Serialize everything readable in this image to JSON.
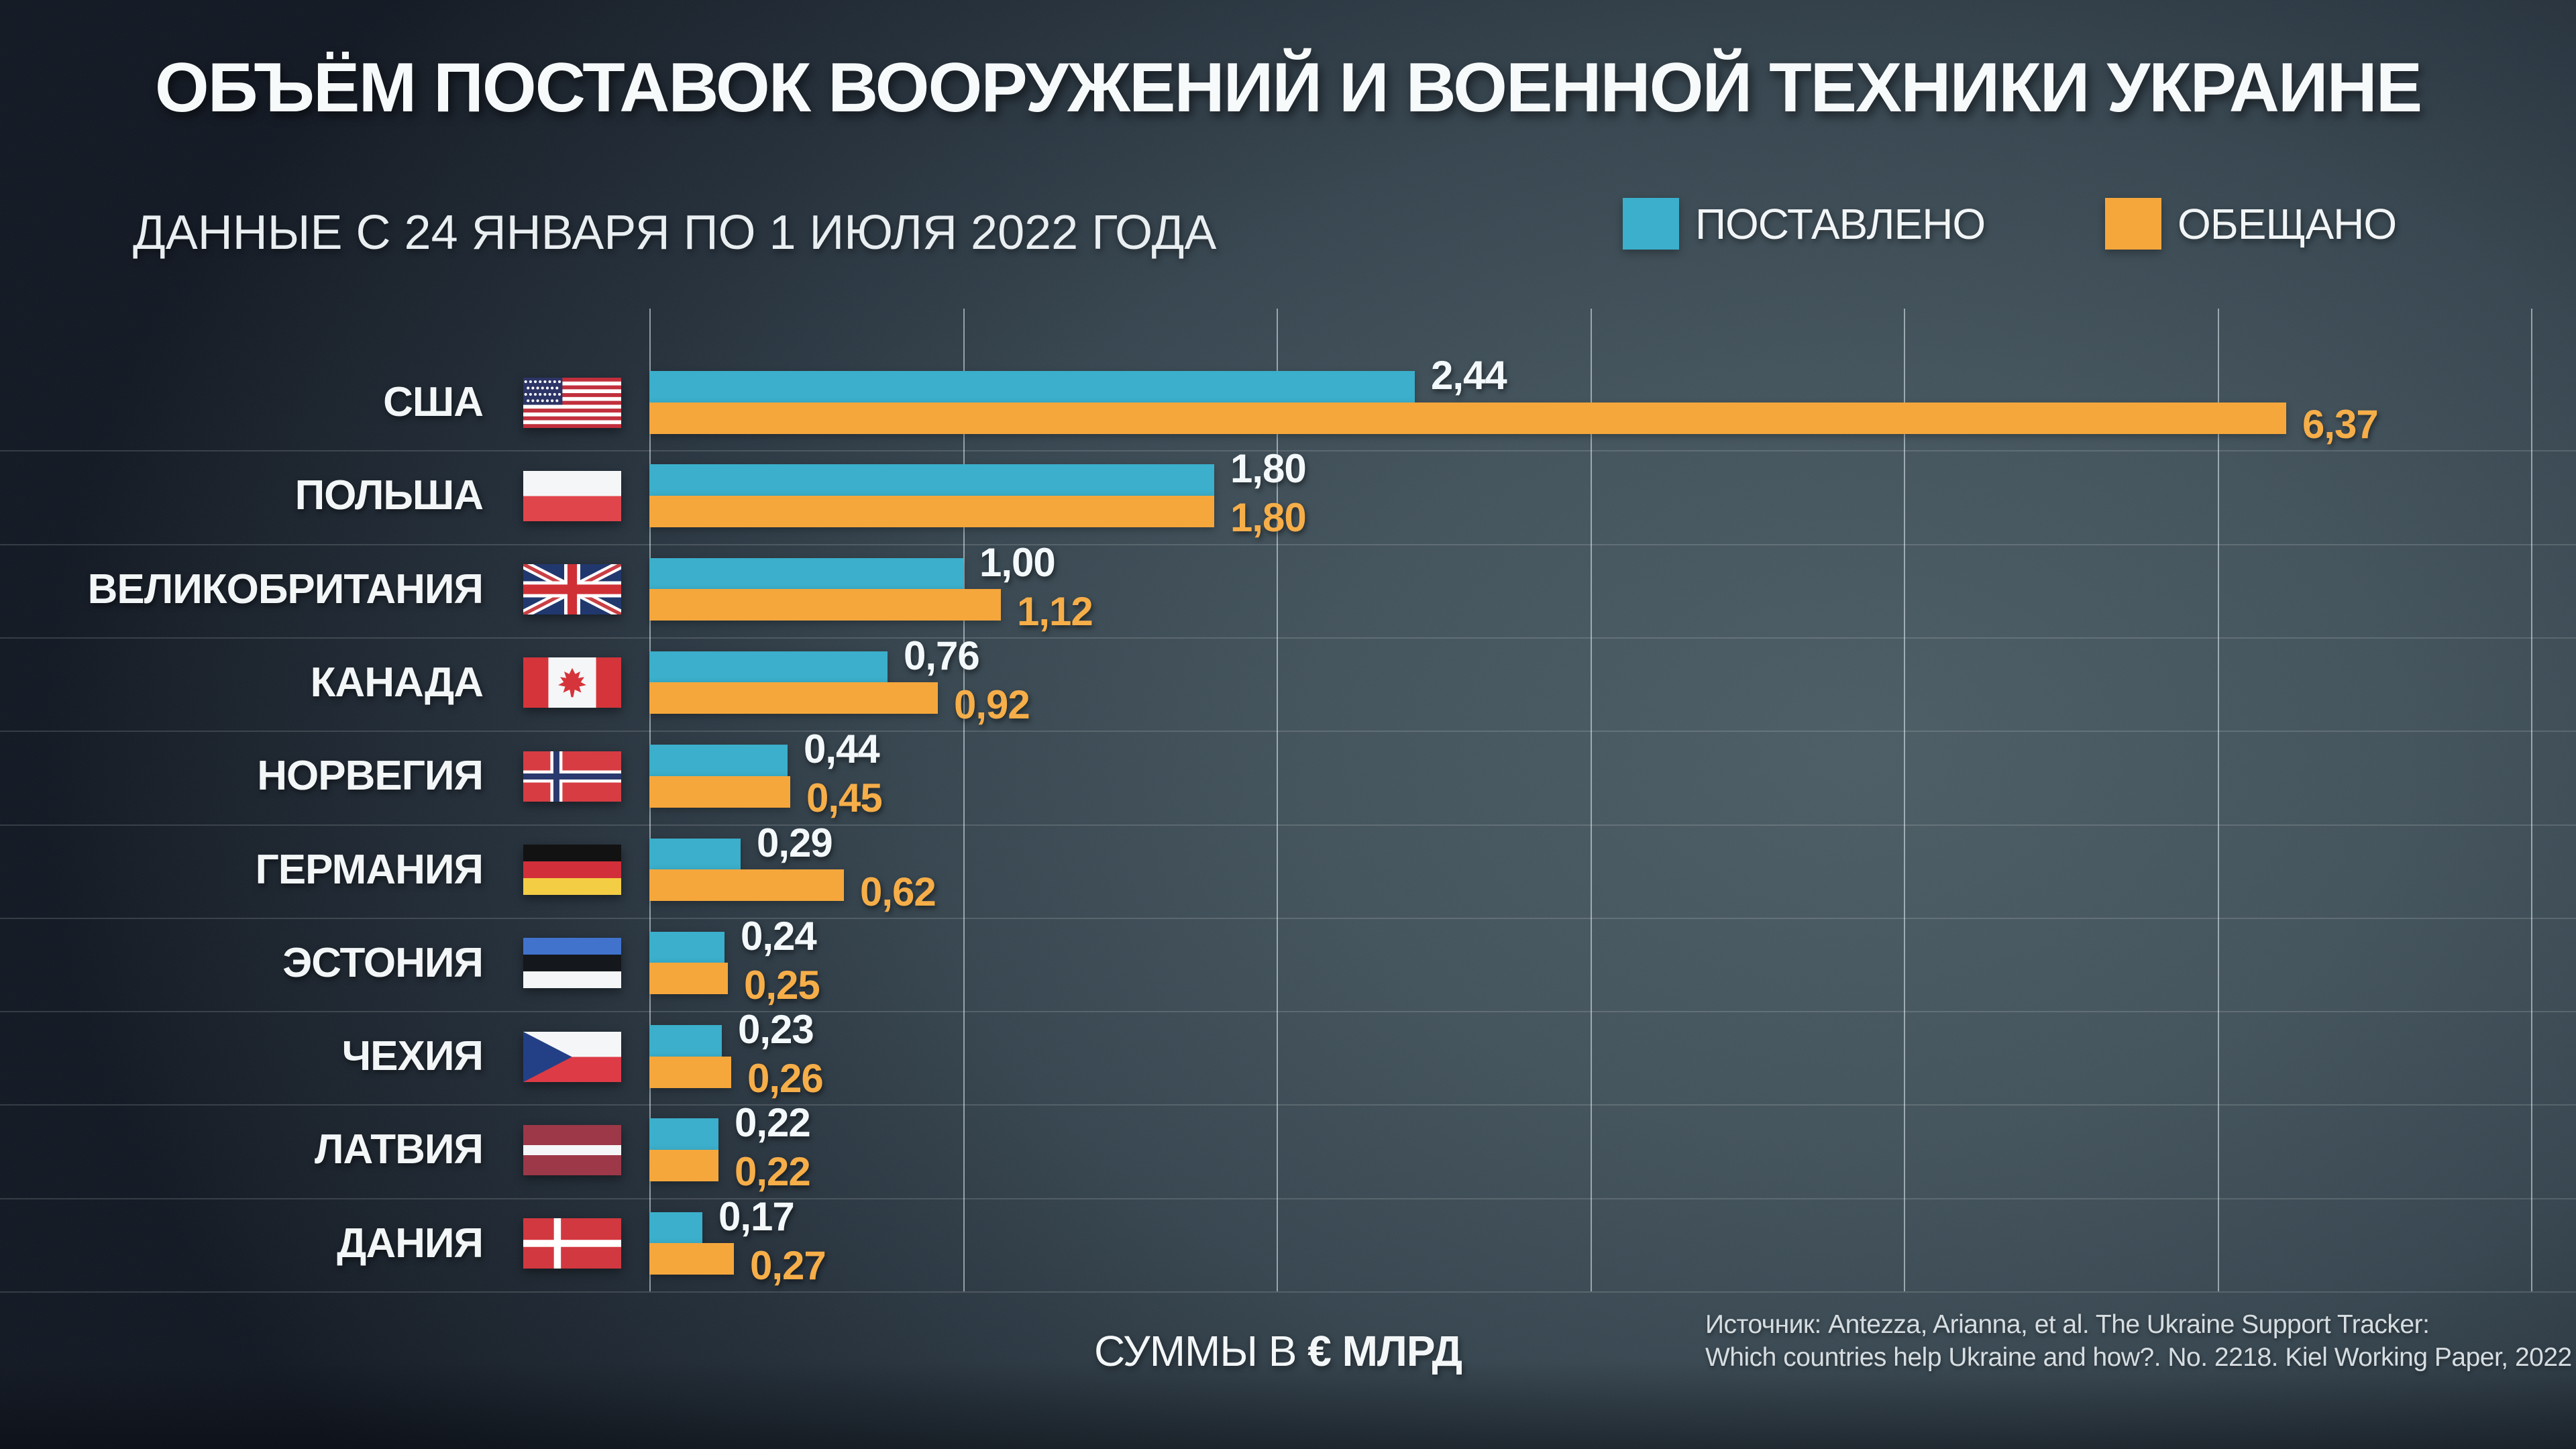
{
  "title": "ОБЪЁМ ПОСТАВОК ВООРУЖЕНИЙ И ВОЕННОЙ ТЕХНИКИ УКРАИНЕ",
  "subtitle": "ДАННЫЕ С 24 ЯНВАРЯ ПО 1 ИЮЛЯ 2022 ГОДА",
  "legend": {
    "delivered": "ПОСТАВЛЕНО",
    "promised": "ОБЕЩАНО"
  },
  "footer": {
    "units_prefix": "СУММЫ В",
    "units_bold": "€ МЛРД"
  },
  "source": {
    "line1": "Источник: Antezza, Arianna, et al. The Ukraine Support Tracker:",
    "line2": "Which countries help Ukraine and how?. No. 2218. Kiel Working Paper, 2022"
  },
  "colors": {
    "delivered": "#3bafcb",
    "promised": "#f5a73c",
    "delivered_value_text": "#f3f8fa",
    "promised_value_text": "#f6ae49",
    "background_dark": "#121823",
    "background_light": "#4c5d65",
    "gridline": "rgba(228,240,245,0.55)"
  },
  "chart_data": {
    "type": "bar",
    "orientation": "horizontal",
    "title": "ОБЪЁМ ПОСТАВОК ВООРУЖЕНИЙ И ВОЕННОЙ ТЕХНИКИ УКРАИНЕ",
    "subtitle": "ДАННЫЕ С 24 ЯНВАРЯ ПО 1 ИЮЛЯ 2022 ГОДА",
    "units": "€ млрд",
    "decimal_separator": ",",
    "xlim": [
      0,
      6
    ],
    "gridline_interval": 1,
    "grid": true,
    "legend_position": "top-right",
    "categories": [
      "США",
      "ПОЛЬША",
      "ВЕЛИКОБРИТАНИЯ",
      "КАНАДА",
      "НОРВЕГИЯ",
      "ГЕРМАНИЯ",
      "ЭСТОНИЯ",
      "ЧЕХИЯ",
      "ЛАТВИЯ",
      "ДАНИЯ"
    ],
    "flags": [
      "usa",
      "poland",
      "uk",
      "canada",
      "norway",
      "germany",
      "estonia",
      "czechia",
      "latvia",
      "denmark"
    ],
    "series": [
      {
        "name": "ПОСТАВЛЕНО",
        "color": "#3bafcb",
        "values": [
          2.44,
          1.8,
          1.0,
          0.76,
          0.44,
          0.29,
          0.24,
          0.23,
          0.22,
          0.17
        ]
      },
      {
        "name": "ОБЕЩАНО",
        "color": "#f5a73c",
        "values": [
          6.37,
          1.8,
          1.12,
          0.92,
          0.45,
          0.62,
          0.25,
          0.26,
          0.22,
          0.27
        ]
      }
    ],
    "value_labels": [
      [
        "2,44",
        "6,37"
      ],
      [
        "1,80",
        "1,80"
      ],
      [
        "1,00",
        "1,12"
      ],
      [
        "0,76",
        "0,92"
      ],
      [
        "0,44",
        "0,45"
      ],
      [
        "0,29",
        "0,62"
      ],
      [
        "0,24",
        "0,25"
      ],
      [
        "0,23",
        "0,26"
      ],
      [
        "0,22",
        "0,22"
      ],
      [
        "0,17",
        "0,27"
      ]
    ]
  }
}
